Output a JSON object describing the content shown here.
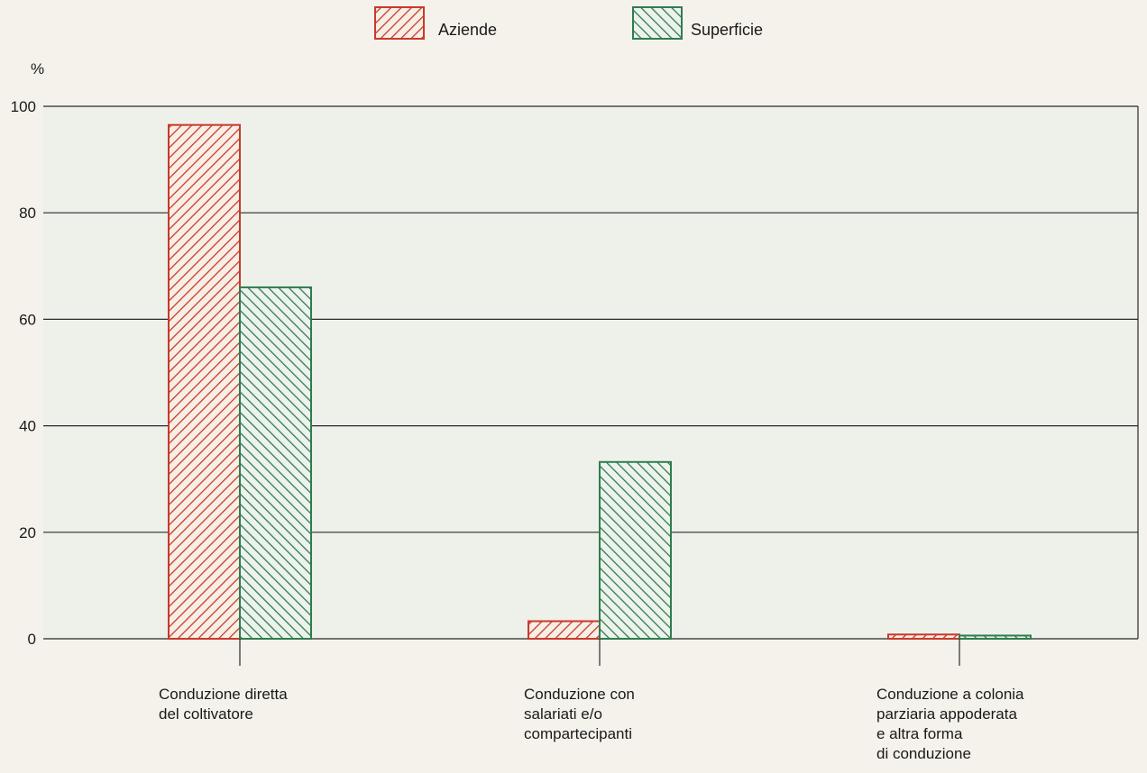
{
  "chart_data": {
    "type": "bar",
    "ylabel": "%",
    "ylim": [
      0,
      100
    ],
    "yticks": [
      0,
      20,
      40,
      60,
      80,
      100
    ],
    "grid": true,
    "legend_position": "top-center",
    "categories": [
      [
        "Conduzione diretta",
        "del coltivatore"
      ],
      [
        "Conduzione con",
        "salariati e/o",
        "compartecipanti"
      ],
      [
        "Conduzione a colonia",
        "parziaria appoderata",
        "e altra forma",
        "di conduzione"
      ]
    ],
    "series": [
      {
        "name": "Aziende",
        "color": "#c9392b",
        "pattern": "hatch-forward",
        "values": [
          96.5,
          3.3,
          0.8
        ]
      },
      {
        "name": "Superficie",
        "color": "#2e7d4f",
        "pattern": "hatch-backward",
        "values": [
          66.0,
          33.2,
          0.6
        ]
      }
    ]
  }
}
